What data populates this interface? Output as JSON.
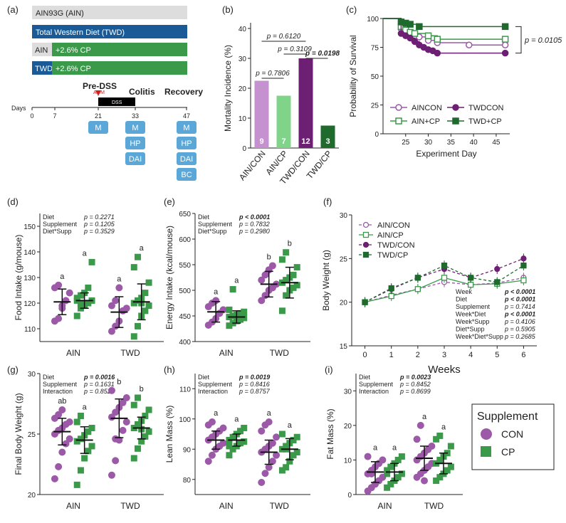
{
  "colors": {
    "aincon": "#9b59a8",
    "aincp": "#3a9a4a",
    "twdcon": "#6d1f74",
    "twdcp": "#1f6b2e",
    "ainBar": "#c592cf",
    "aincpBar": "#80d48a",
    "twdconBar": "#6d1f74",
    "twdcpBar": "#1f6b2e",
    "grey": "#dddddd",
    "blue": "#1a5b97",
    "green": "#3a9a4a",
    "lightblue": "#5aa7d8",
    "red": "#cc2222"
  },
  "panel_a": {
    "letter": "(a)",
    "bars": [
      "AIN93G (AIN)",
      "Total Western Diet (TWD)",
      "AIN",
      "+2.6% CP",
      "TWD",
      "+2.6% CP"
    ],
    "days_label": "Days",
    "ticks": [
      "0",
      "7",
      "21",
      "33",
      "47"
    ],
    "phases": [
      "Pre-DSS",
      "Colitis",
      "Recovery"
    ],
    "aom": "AOM",
    "dss": "DSS",
    "boxes21": [
      "M"
    ],
    "boxes33": [
      "M",
      "HP",
      "DAI"
    ],
    "boxes47": [
      "M",
      "HP",
      "DAI",
      "BC"
    ]
  },
  "chart_data": [
    {
      "panel": "(b)",
      "type": "bar",
      "ylabel": "Mortality Incidence (%)",
      "ylim": [
        0,
        40
      ],
      "yticks": [
        "0",
        "10",
        "20",
        "30",
        "40"
      ],
      "categories": [
        "AIN/CON",
        "AIN/CP",
        "TWD/CON",
        "TWD/CP"
      ],
      "values": [
        22.5,
        17.5,
        30,
        7.5
      ],
      "labels": [
        "9",
        "7",
        "12",
        "3"
      ],
      "annotations": [
        "p = 0.6120",
        "p = 0.3109",
        "p = 0.7806",
        "p = 0.0198"
      ]
    },
    {
      "panel": "(c)",
      "type": "line",
      "ylabel": "Probability of Survival",
      "xlabel": "Experiment Day",
      "xlim": [
        20,
        48
      ],
      "ylim": [
        0,
        100
      ],
      "xticks": [
        "25",
        "30",
        "35",
        "40",
        "45"
      ],
      "yticks": [
        "0",
        "25",
        "50",
        "75",
        "100"
      ],
      "pvalue": "p = 0.0105",
      "legend": [
        "AINCON",
        "TWDCON",
        "AIN+CP",
        "TWD+CP"
      ],
      "series": [
        {
          "name": "AINCON",
          "x": [
            20,
            24,
            25,
            26,
            27,
            28,
            30,
            32,
            39,
            47
          ],
          "y": [
            100,
            91,
            88,
            86,
            85,
            84,
            81,
            79,
            77,
            77
          ]
        },
        {
          "name": "AIN+CP",
          "x": [
            20,
            24,
            25,
            26,
            27,
            30,
            32,
            47
          ],
          "y": [
            100,
            93,
            90,
            88,
            87,
            85,
            82,
            82
          ]
        },
        {
          "name": "TWDCON",
          "x": [
            20,
            24,
            25,
            26,
            27,
            28,
            29,
            30,
            31,
            32,
            47
          ],
          "y": [
            100,
            87,
            85,
            83,
            80,
            77,
            75,
            73,
            72,
            70,
            70
          ]
        },
        {
          "name": "TWD+CP",
          "x": [
            20,
            24,
            25,
            26,
            28,
            47
          ],
          "y": [
            100,
            97,
            96,
            95,
            93,
            93
          ]
        }
      ]
    },
    {
      "panel": "(d)",
      "type": "scatter",
      "ylabel": "Food Intake (g/mouse)",
      "ylim": [
        105,
        155
      ],
      "yticks": [
        "110",
        "120",
        "130",
        "140",
        "150"
      ],
      "categories": [
        "AIN",
        "TWD"
      ],
      "stats": [
        [
          "Diet",
          "p = 0.2271"
        ],
        [
          "Supplement",
          "p = 0.1205"
        ],
        [
          "Diet*Supp",
          "p = 0.3529"
        ]
      ],
      "bold": [
        false,
        false,
        false
      ],
      "letters": [
        "a",
        "a",
        "a",
        "a"
      ],
      "groups": [
        {
          "mean": 120.5,
          "sd": 5,
          "pts": [
            113,
            114,
            119,
            121,
            124,
            126,
            127,
            118
          ]
        },
        {
          "mean": 121,
          "sd": 3,
          "pts": [
            115,
            118,
            119,
            120,
            121,
            122,
            123,
            124,
            126,
            136,
            121,
            120
          ]
        },
        {
          "mean": 116.5,
          "sd": 6,
          "pts": [
            109,
            111,
            113,
            117,
            118,
            119,
            121,
            126
          ]
        },
        {
          "mean": 120.5,
          "sd": 7,
          "pts": [
            107,
            111,
            115,
            117,
            119,
            120,
            121,
            122,
            124,
            128,
            134,
            138,
            120
          ]
        }
      ]
    },
    {
      "panel": "(e)",
      "type": "scatter",
      "ylabel": "Energy Intake (kcal/mouse)",
      "ylim": [
        400,
        650
      ],
      "yticks": [
        "400",
        "450",
        "500",
        "550",
        "600",
        "650"
      ],
      "categories": [
        "AIN",
        "TWD"
      ],
      "stats": [
        [
          "Diet",
          "p < 0.0001"
        ],
        [
          "Supplement",
          "p = 0.7832"
        ],
        [
          "Diet*Supp",
          "p = 0.2980"
        ]
      ],
      "bold": [
        true,
        false,
        false
      ],
      "letters": [
        "a",
        "a",
        "b",
        "b"
      ],
      "groups": [
        {
          "mean": 458,
          "sd": 20,
          "pts": [
            432,
            438,
            445,
            455,
            462,
            468,
            475,
            480
          ]
        },
        {
          "mean": 448,
          "sd": 12,
          "pts": [
            431,
            436,
            440,
            443,
            446,
            448,
            450,
            452,
            455,
            458,
            462,
            502
          ]
        },
        {
          "mean": 512,
          "sd": 25,
          "pts": [
            480,
            490,
            500,
            505,
            512,
            520,
            530,
            540,
            548
          ]
        },
        {
          "mean": 515,
          "sd": 30,
          "pts": [
            460,
            490,
            500,
            505,
            510,
            515,
            520,
            525,
            530,
            545,
            560,
            574
          ]
        }
      ]
    },
    {
      "panel": "(f)",
      "type": "line",
      "ylabel": "Body Weight (g)",
      "xlabel": "Weeks",
      "xlim": [
        -0.5,
        6.5
      ],
      "ylim": [
        15,
        30
      ],
      "xticks": [
        "0",
        "1",
        "2",
        "3",
        "4",
        "5",
        "6"
      ],
      "yticks": [
        "15",
        "20",
        "25",
        "30"
      ],
      "legend": [
        "AIN/CON",
        "AIN/CP",
        "TWD/CON",
        "TWD/CP"
      ],
      "series": [
        {
          "name": "AIN/CON",
          "x": [
            0,
            1,
            2,
            3,
            4,
            5,
            6
          ],
          "y": [
            20,
            20.8,
            21.5,
            22.3,
            22,
            22.2,
            22.8
          ]
        },
        {
          "name": "AIN/CP",
          "x": [
            0,
            1,
            2,
            3,
            4,
            5,
            6
          ],
          "y": [
            20,
            20.7,
            21.5,
            22.8,
            22,
            22.1,
            22.5
          ]
        },
        {
          "name": "TWD/CON",
          "x": [
            0,
            1,
            2,
            3,
            4,
            5,
            6
          ],
          "y": [
            20,
            21.5,
            22.8,
            23.8,
            22.8,
            23.8,
            25
          ]
        },
        {
          "name": "TWD/CP",
          "x": [
            0,
            1,
            2,
            3,
            4,
            5,
            6
          ],
          "y": [
            20,
            21.6,
            22.8,
            24.2,
            22.8,
            22.3,
            24.2
          ]
        }
      ],
      "stats": [
        [
          "Week",
          "p < 0.0001"
        ],
        [
          "Diet",
          "p < 0.0001"
        ],
        [
          "Supplement",
          "p = 0.7414"
        ],
        [
          "Week*Diet",
          "p < 0.0001"
        ],
        [
          "Week*Supp",
          "p = 0.4106"
        ],
        [
          "Diet*Supp",
          "p = 0.5905"
        ],
        [
          "Week*Diet*Supp",
          "p = 0.2685"
        ]
      ],
      "bold": [
        true,
        true,
        false,
        true,
        false,
        false,
        false
      ]
    },
    {
      "panel": "(g)",
      "type": "scatter",
      "ylabel": "Final Body Weight (g)",
      "ylim": [
        20,
        30
      ],
      "yticks": [
        "20",
        "25",
        "30"
      ],
      "categories": [
        "AIN",
        "TWD"
      ],
      "stats": [
        [
          "Diet",
          "p = 0.0016"
        ],
        [
          "Supplement",
          "p = 0.1631"
        ],
        [
          "Interaction",
          "p = 0.8529"
        ]
      ],
      "bold": [
        true,
        false,
        false
      ],
      "letters": [
        "ab",
        "a",
        "b",
        "b"
      ],
      "groups": [
        {
          "mean": 25.2,
          "sd": 1.1,
          "pts": [
            21.3,
            22.3,
            23.5,
            24.2,
            24.6,
            25,
            25.3,
            25.5,
            25.8,
            26,
            26.3,
            26.6,
            27
          ]
        },
        {
          "mean": 24.5,
          "sd": 1.1,
          "pts": [
            20.8,
            22,
            23,
            23.6,
            24,
            24.4,
            24.6,
            24.9,
            25.2,
            25.5,
            26,
            26.5
          ]
        },
        {
          "mean": 26.3,
          "sd": 1.6,
          "pts": [
            21.6,
            22.8,
            24.5,
            25.3,
            26,
            26.4,
            26.8,
            27.2,
            27.6,
            28,
            28.6,
            24.6
          ]
        },
        {
          "mean": 25.5,
          "sd": 0.9,
          "pts": [
            23,
            23.8,
            24.4,
            24.8,
            25.2,
            25.5,
            25.8,
            26.1,
            26.5,
            27,
            27.4,
            28,
            25.4
          ]
        }
      ]
    },
    {
      "panel": "(h)",
      "type": "scatter",
      "ylabel": "Lean Mass (%)",
      "ylim": [
        75,
        115
      ],
      "yticks": [
        "80",
        "90",
        "100",
        "110"
      ],
      "categories": [
        "AIN",
        "TWD"
      ],
      "stats": [
        [
          "Diet",
          "p = 0.0019"
        ],
        [
          "Supplement",
          "p = 0.8416"
        ],
        [
          "Interaction",
          "p = 0.8757"
        ]
      ],
      "bold": [
        true,
        false,
        false
      ],
      "letters": [
        "a",
        "a",
        "a",
        "a"
      ],
      "groups": [
        {
          "mean": 93,
          "sd": 3,
          "pts": [
            86,
            88,
            90,
            91,
            92,
            93,
            94,
            95,
            96,
            97,
            98,
            99
          ]
        },
        {
          "mean": 93,
          "sd": 2,
          "pts": [
            88,
            90,
            91,
            92,
            92.5,
            93,
            94,
            95,
            96,
            97,
            91
          ]
        },
        {
          "mean": 89,
          "sd": 4,
          "pts": [
            79,
            82,
            84,
            86,
            88,
            89,
            90,
            91,
            92,
            94,
            96,
            98,
            99
          ]
        },
        {
          "mean": 90,
          "sd": 3.5,
          "pts": [
            83,
            84,
            86,
            88,
            89,
            90,
            91,
            92,
            93,
            94,
            95,
            90
          ]
        }
      ]
    },
    {
      "panel": "(i)",
      "type": "scatter",
      "ylabel": "Fat Mass (%)",
      "ylim": [
        0,
        35
      ],
      "yticks": [
        "0",
        "10",
        "20",
        "30"
      ],
      "categories": [
        "AIN",
        "TWD"
      ],
      "stats": [
        [
          "Diet",
          "p = 0.0023"
        ],
        [
          "Supplement",
          "p = 0.8452"
        ],
        [
          "Interaction",
          "p = 0.8699"
        ]
      ],
      "bold": [
        true,
        false,
        false
      ],
      "letters": [
        "a",
        "a",
        "a",
        "a"
      ],
      "groups": [
        {
          "mean": 6.5,
          "sd": 3,
          "pts": [
            1,
            2,
            3,
            4,
            5,
            6,
            7,
            8,
            9,
            10,
            11,
            6
          ]
        },
        {
          "mean": 6.5,
          "sd": 2.5,
          "pts": [
            2,
            3,
            4,
            5,
            6,
            7,
            8,
            9,
            10,
            11,
            6
          ]
        },
        {
          "mean": 10.5,
          "sd": 3.5,
          "pts": [
            5,
            6,
            7,
            8,
            9,
            10,
            11,
            12,
            13,
            14,
            16,
            20,
            4
          ]
        },
        {
          "mean": 9,
          "sd": 3,
          "pts": [
            4,
            5,
            6,
            7,
            8,
            9,
            10,
            11,
            12,
            14,
            16,
            17
          ]
        }
      ]
    }
  ],
  "legend": {
    "title": "Supplement",
    "items": [
      "CON",
      "CP"
    ]
  }
}
